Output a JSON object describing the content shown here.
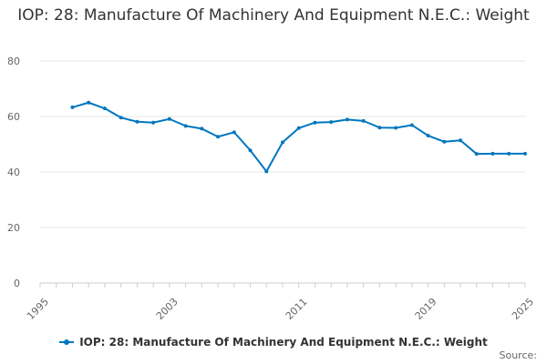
{
  "chart_data": {
    "type": "line",
    "title": "IOP: 28: Manufacture Of Machinery And Equipment N.E.C.: Weight",
    "xlabel": "",
    "ylabel": "",
    "xlim": [
      1995,
      2025
    ],
    "ylim": [
      0,
      80
    ],
    "yticks": [
      0,
      20,
      40,
      60,
      80
    ],
    "xticks": [
      1995,
      2003,
      2011,
      2019,
      2025
    ],
    "grid": true,
    "legend_position": "bottom",
    "series": [
      {
        "name": "IOP: 28: Manufacture Of Machinery And Equipment N.E.C.: Weight",
        "color": "#0077be",
        "x": [
          1997,
          1998,
          1999,
          2000,
          2001,
          2002,
          2003,
          2004,
          2005,
          2006,
          2007,
          2008,
          2009,
          2010,
          2011,
          2012,
          2013,
          2014,
          2015,
          2016,
          2017,
          2018,
          2019,
          2020,
          2021,
          2022,
          2023,
          2024,
          2025
        ],
        "values": [
          63.3,
          65.0,
          62.9,
          59.6,
          58.1,
          57.8,
          59.1,
          56.6,
          55.6,
          52.7,
          54.3,
          47.8,
          40.2,
          50.7,
          55.8,
          57.8,
          58.0,
          58.9,
          58.4,
          56.0,
          55.9,
          56.9,
          53.1,
          50.9,
          51.4,
          46.5,
          46.6,
          46.6,
          46.6
        ]
      }
    ]
  },
  "source_label": "Source:"
}
